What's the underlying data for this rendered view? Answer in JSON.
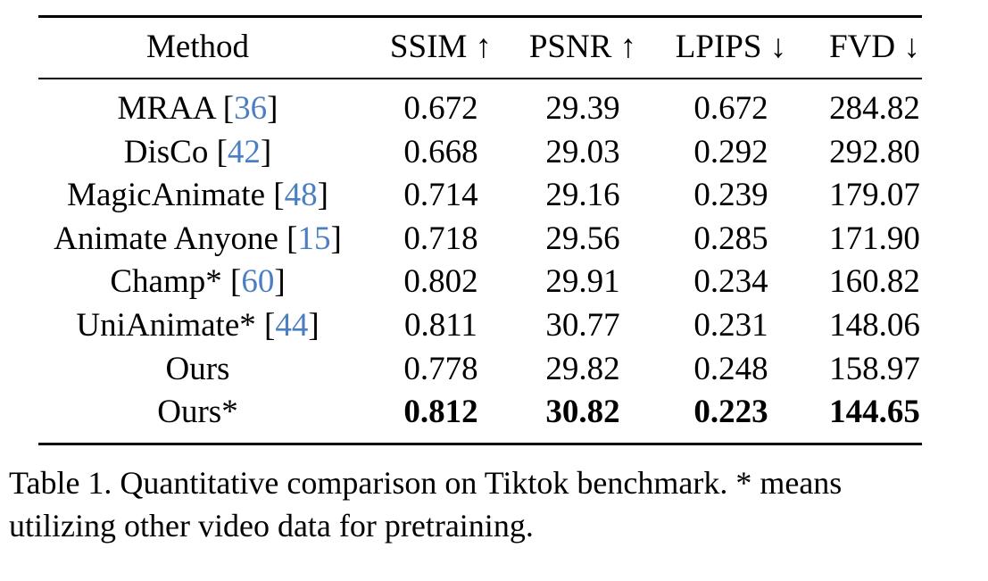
{
  "table": {
    "headers": {
      "method": "Method",
      "ssim": "SSIM ↑",
      "psnr": "PSNR ↑",
      "lpips": "LPIPS ↓",
      "fvd": "FVD ↓"
    },
    "rows": [
      {
        "name": "MRAA",
        "cite": "36",
        "ssim": "0.672",
        "psnr": "29.39",
        "lpips": "0.672",
        "fvd": "284.82"
      },
      {
        "name": "DisCo",
        "cite": "42",
        "ssim": "0.668",
        "psnr": "29.03",
        "lpips": "0.292",
        "fvd": "292.80"
      },
      {
        "name": "MagicAnimate",
        "cite": "48",
        "ssim": "0.714",
        "psnr": "29.16",
        "lpips": "0.239",
        "fvd": "179.07"
      },
      {
        "name": "Animate Anyone",
        "cite": "15",
        "ssim": "0.718",
        "psnr": "29.56",
        "lpips": "0.285",
        "fvd": "171.90"
      },
      {
        "name": "Champ*",
        "cite": "60",
        "ssim": "0.802",
        "psnr": "29.91",
        "lpips": "0.234",
        "fvd": "160.82"
      },
      {
        "name": "UniAnimate*",
        "cite": "44",
        "ssim": "0.811",
        "psnr": "30.77",
        "lpips": "0.231",
        "fvd": "148.06"
      },
      {
        "name": "Ours",
        "cite": "",
        "ssim": "0.778",
        "psnr": "29.82",
        "lpips": "0.248",
        "fvd": "158.97"
      },
      {
        "name": "Ours*",
        "cite": "",
        "ssim": "0.812",
        "psnr": "30.82",
        "lpips": "0.223",
        "fvd": "144.65",
        "bold": true
      }
    ]
  },
  "caption": {
    "line1": "Table 1. Quantitative comparison on Tiktok benchmark. * means",
    "line2": "utilizing other video data for pretraining."
  }
}
